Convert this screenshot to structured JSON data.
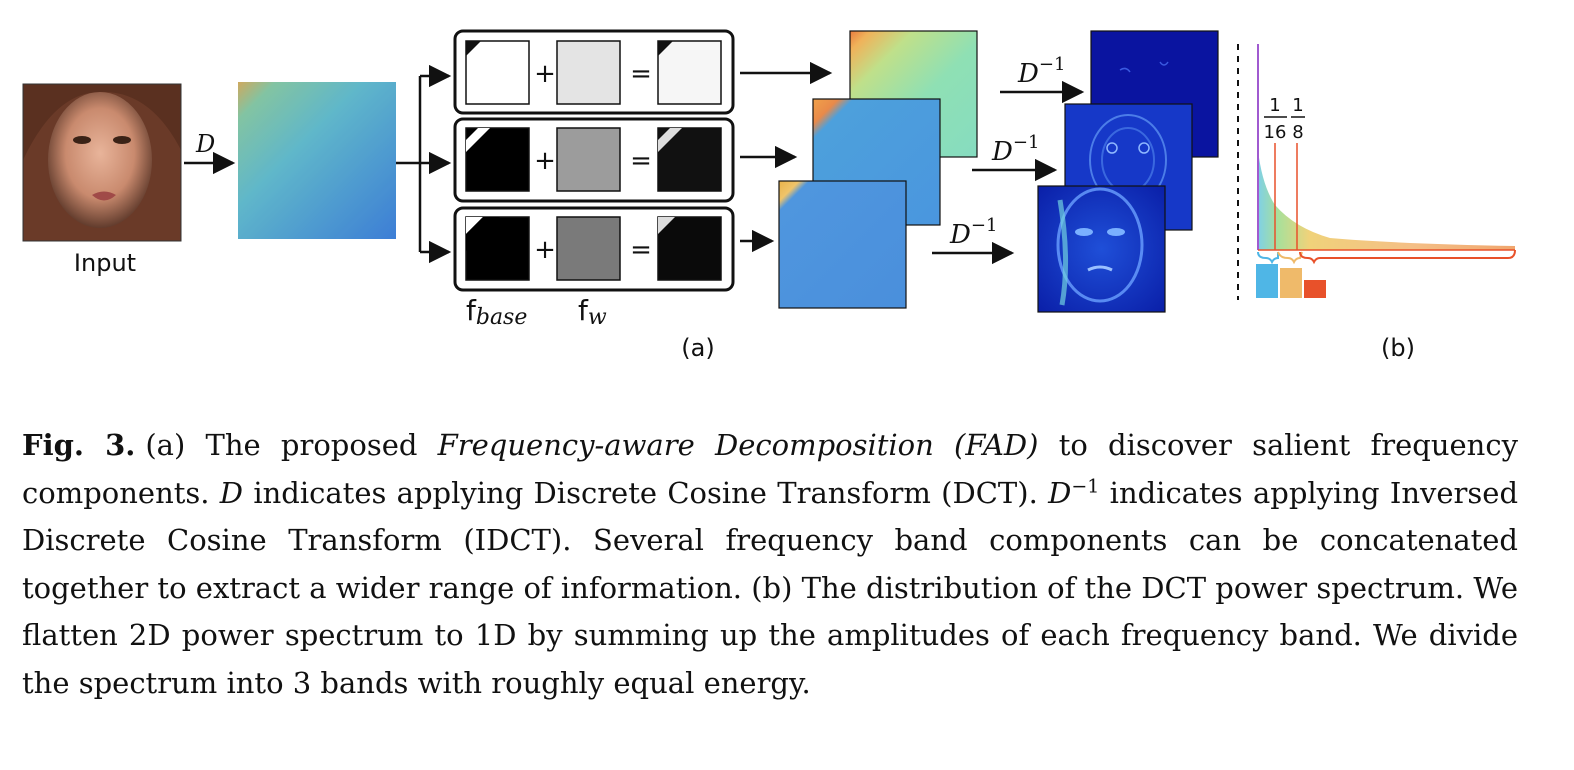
{
  "figure": {
    "input_label": "Input",
    "dct_symbol": "D",
    "idct_symbol": "D",
    "inverse_exponent": "−1",
    "plus_symbol": "+",
    "equals_symbol": "=",
    "f_base_main": "f",
    "f_base_sub": "base",
    "f_w_main": "f",
    "f_w_sub": "w",
    "panel_a_label": "(a)",
    "panel_b_label": "(b)",
    "frac1_num": "1",
    "frac1_den": "16",
    "frac2_num": "1",
    "frac2_den": "8",
    "colors": {
      "band_low": "#4fb6e6",
      "band_mid": "#efba6a",
      "band_high": "#e8512a",
      "spectrum_line": "#a05ad0",
      "box_border": "#111111"
    }
  },
  "caption": {
    "fig_number": "Fig. 3.",
    "part1": "(a) The proposed ",
    "italic_term": "Frequency-aware Decomposition (FAD)",
    "part2": " to discover salient frequency components. ",
    "part3": " indicates applying Discrete Cosine Transform (DCT). ",
    "part4": " indicates applying Inversed Discrete Cosine Transform (IDCT). Several frequency band components can be concatenated together to extract a wider range of information. (b) The distribution of the DCT power spectrum. We flatten 2D power spectrum to 1D by summing up the amplitudes of each frequency band. We divide the spectrum into 3 bands with roughly equal energy.",
    "d_symbol": "D",
    "inverse_exponent": "−1"
  }
}
